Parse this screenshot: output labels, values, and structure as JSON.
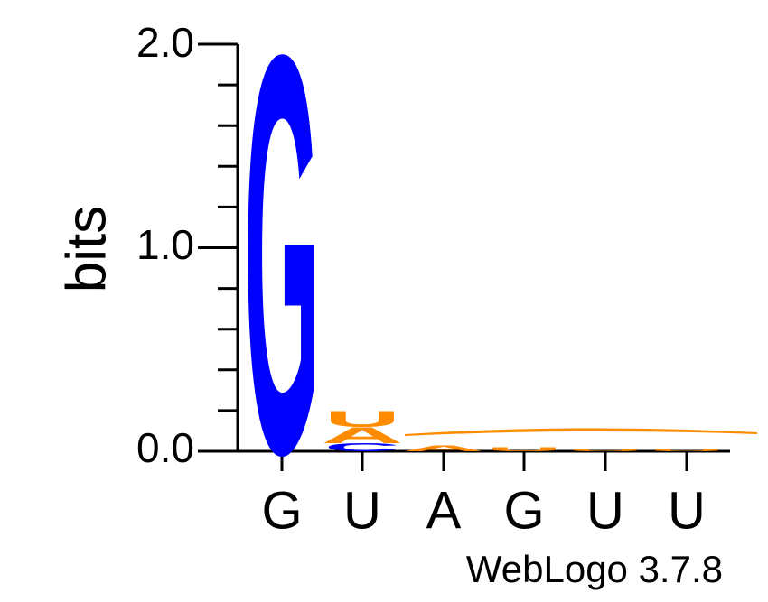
{
  "chart_data": {
    "type": "sequence-logo",
    "ylabel": "bits",
    "yticks": [
      "0.0",
      "1.0",
      "2.0"
    ],
    "ylim": [
      0,
      2
    ],
    "categories": [
      "G",
      "U",
      "A",
      "G",
      "U",
      "U"
    ],
    "footer": "WebLogo 3.7.8",
    "colors": {
      "G": "#0000ff",
      "C": "#0000ff",
      "U": "#ff8c00",
      "A": "#ff8c00"
    },
    "positions": [
      {
        "label": "G",
        "stack": [
          {
            "letter": "G",
            "bits": 2.0
          }
        ]
      },
      {
        "label": "U",
        "stack": [
          {
            "letter": "C",
            "bits": 0.04
          },
          {
            "letter": "A",
            "bits": 0.08
          },
          {
            "letter": "U",
            "bits": 0.08
          }
        ]
      },
      {
        "label": "A",
        "stack": [
          {
            "letter": "A",
            "bits": 0.03
          }
        ]
      },
      {
        "label": "G",
        "stack": [
          {
            "letter": "U",
            "bits": 0.02
          }
        ]
      },
      {
        "label": "U",
        "stack": [
          {
            "letter": "U",
            "bits": 0.01
          }
        ]
      },
      {
        "label": "U",
        "stack": [
          {
            "letter": "U",
            "bits": 0.01
          }
        ]
      }
    ]
  }
}
